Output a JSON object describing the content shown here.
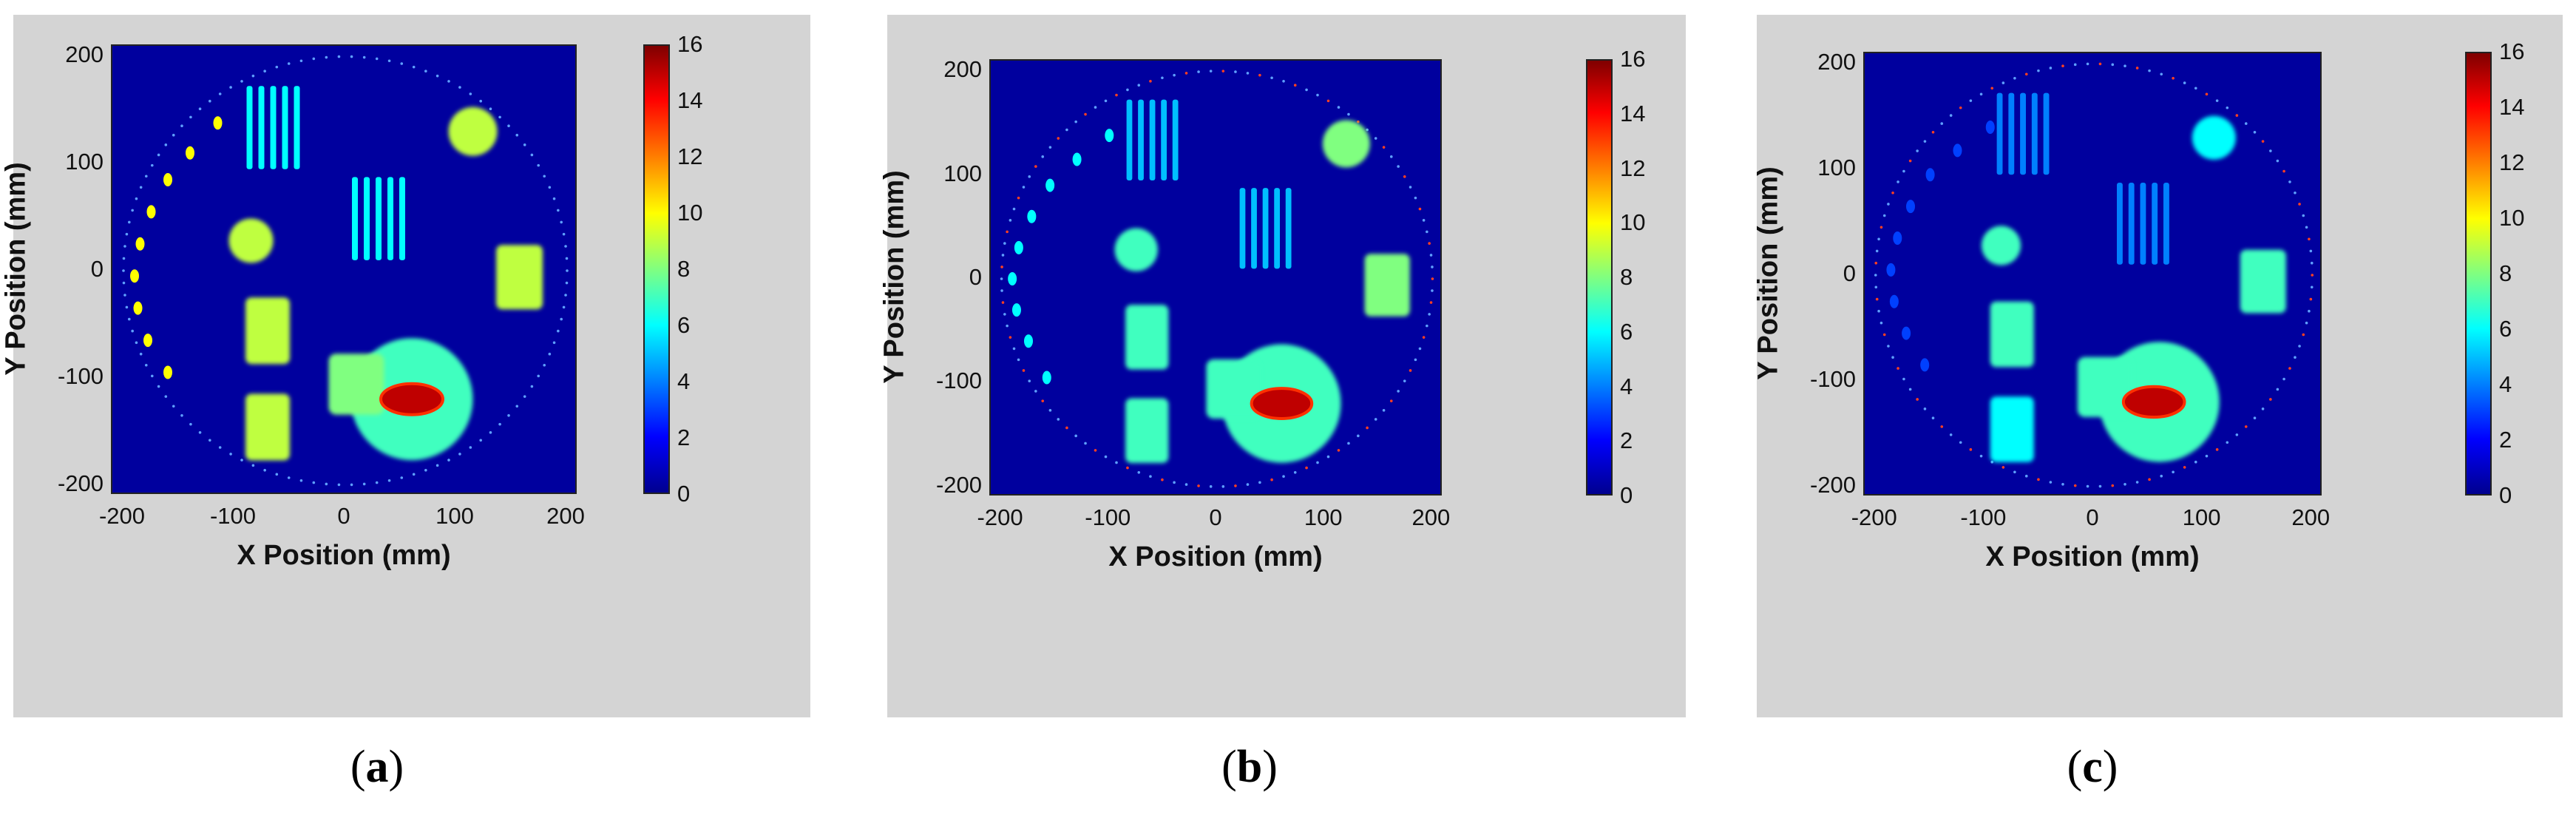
{
  "colors": {
    "background": "#00009e",
    "panel": "#d4d4d4",
    "colormap": "jet"
  },
  "chart_data": [
    {
      "type": "heatmap",
      "panel": "a",
      "caption_letter": "a",
      "xlabel": "X Position (mm)",
      "ylabel": "Y Position (mm)",
      "xlim": [
        -210,
        210
      ],
      "ylim": [
        -210,
        210
      ],
      "x_ticks": [
        "-200",
        "-100",
        "0",
        "100",
        "200"
      ],
      "y_ticks": [
        "200",
        "100",
        "0",
        "-100",
        "-200"
      ],
      "colorbar": {
        "range": [
          0,
          16
        ],
        "ticks": [
          "16",
          "14",
          "12",
          "10",
          "8",
          "6",
          "4",
          "2",
          "0"
        ]
      },
      "phantom_radius": 200,
      "features": {
        "arc_dots": {
          "points": [
            [
              -115,
              138
            ],
            [
              -140,
              110
            ],
            [
              -160,
              85
            ],
            [
              -175,
              55
            ],
            [
              -185,
              25
            ],
            [
              -190,
              -5
            ],
            [
              -187,
              -35
            ],
            [
              -178,
              -65
            ],
            [
              -160,
              -95
            ]
          ],
          "value": 10
        },
        "bar_group_top": {
          "center": [
            -65,
            135
          ],
          "size": [
            48,
            75
          ],
          "value": 6
        },
        "bar_group_mid": {
          "center": [
            30,
            50
          ],
          "size": [
            48,
            75
          ],
          "value": 6
        },
        "disk_top_right": {
          "center": [
            115,
            130
          ],
          "radius": 22,
          "value": 9
        },
        "disk_left": {
          "center": [
            -85,
            28
          ],
          "radius": 20,
          "value": 9
        },
        "rect_right": {
          "center": [
            157,
            -5
          ],
          "size": [
            42,
            58
          ],
          "value": 9
        },
        "rect_left_mid": {
          "center": [
            -70,
            -55
          ],
          "size": [
            40,
            60
          ],
          "value": 9
        },
        "rect_left_bottom": {
          "center": [
            -70,
            -145
          ],
          "size": [
            40,
            60
          ],
          "value": 9
        },
        "blob_low": {
          "center": [
            10,
            -105
          ],
          "size": [
            50,
            55
          ],
          "value": 8
        },
        "blob_large": {
          "center": [
            60,
            -120
          ],
          "radius": 55,
          "value": 7
        },
        "hot_spot": {
          "center": [
            60,
            -120
          ],
          "size": [
            56,
            28
          ],
          "value": 15
        }
      }
    },
    {
      "type": "heatmap",
      "panel": "b",
      "caption_letter": "b",
      "xlabel": "X Position (mm)",
      "ylabel": "Y Position (mm)",
      "xlim": [
        -210,
        210
      ],
      "ylim": [
        -210,
        210
      ],
      "x_ticks": [
        "-200",
        "-100",
        "0",
        "100",
        "200"
      ],
      "y_ticks": [
        "200",
        "100",
        "0",
        "-100",
        "-200"
      ],
      "colorbar": {
        "range": [
          0,
          16
        ],
        "ticks": [
          "16",
          "14",
          "12",
          "10",
          "8",
          "6",
          "4",
          "2",
          "0"
        ]
      },
      "phantom_radius": 200,
      "features": {
        "arc_dots": {
          "points": [
            [
              -100,
              138
            ],
            [
              -130,
              115
            ],
            [
              -155,
              90
            ],
            [
              -172,
              60
            ],
            [
              -184,
              30
            ],
            [
              -190,
              0
            ],
            [
              -186,
              -30
            ],
            [
              -175,
              -60
            ],
            [
              -158,
              -95
            ]
          ],
          "value": 6
        },
        "bar_group_top": {
          "center": [
            -60,
            135
          ],
          "size": [
            48,
            75
          ],
          "value": 5
        },
        "bar_group_mid": {
          "center": [
            45,
            50
          ],
          "size": [
            48,
            75
          ],
          "value": 5
        },
        "disk_top_right": {
          "center": [
            120,
            130
          ],
          "radius": 22,
          "value": 8
        },
        "disk_left": {
          "center": [
            -75,
            28
          ],
          "radius": 20,
          "value": 7
        },
        "rect_right": {
          "center": [
            158,
            -5
          ],
          "size": [
            42,
            58
          ],
          "value": 8
        },
        "rect_left_mid": {
          "center": [
            -65,
            -55
          ],
          "size": [
            40,
            60
          ],
          "value": 7
        },
        "rect_left_bottom": {
          "center": [
            -65,
            -145
          ],
          "size": [
            40,
            60
          ],
          "value": 7
        },
        "blob_low": {
          "center": [
            15,
            -105
          ],
          "size": [
            50,
            55
          ],
          "value": 7
        },
        "blob_large": {
          "center": [
            60,
            -120
          ],
          "radius": 55,
          "value": 7
        },
        "hot_spot": {
          "center": [
            60,
            -120
          ],
          "size": [
            56,
            28
          ],
          "value": 15
        }
      }
    },
    {
      "type": "heatmap",
      "panel": "c",
      "caption_letter": "c",
      "xlabel": "X Position (mm)",
      "ylabel": "Y Position (mm)",
      "xlim": [
        -210,
        210
      ],
      "ylim": [
        -210,
        210
      ],
      "x_ticks": [
        "-200",
        "-100",
        "0",
        "100",
        "200"
      ],
      "y_ticks": [
        "200",
        "100",
        "0",
        "-100",
        "-200"
      ],
      "colorbar": {
        "range": [
          0,
          16
        ],
        "ticks": [
          "16",
          "14",
          "12",
          "10",
          "8",
          "6",
          "4",
          "2",
          "0"
        ]
      },
      "phantom_radius": 200,
      "features": {
        "arc_dots": {
          "points": [
            [
              -95,
              140
            ],
            [
              -125,
              118
            ],
            [
              -150,
              95
            ],
            [
              -168,
              65
            ],
            [
              -180,
              35
            ],
            [
              -186,
              5
            ],
            [
              -183,
              -25
            ],
            [
              -172,
              -55
            ],
            [
              -155,
              -85
            ]
          ],
          "value": 3
        },
        "bar_group_top": {
          "center": [
            -65,
            135
          ],
          "size": [
            48,
            75
          ],
          "value": 4
        },
        "bar_group_mid": {
          "center": [
            45,
            50
          ],
          "size": [
            48,
            75
          ],
          "value": 4
        },
        "disk_top_right": {
          "center": [
            110,
            130
          ],
          "radius": 20,
          "value": 6
        },
        "disk_left": {
          "center": [
            -85,
            28
          ],
          "radius": 18,
          "value": 7
        },
        "rect_right": {
          "center": [
            155,
            -5
          ],
          "size": [
            42,
            58
          ],
          "value": 7
        },
        "rect_left_mid": {
          "center": [
            -75,
            -55
          ],
          "size": [
            40,
            60
          ],
          "value": 7
        },
        "rect_left_bottom": {
          "center": [
            -75,
            -145
          ],
          "size": [
            40,
            60
          ],
          "value": 6
        },
        "blob_low": {
          "center": [
            10,
            -105
          ],
          "size": [
            50,
            55
          ],
          "value": 7
        },
        "blob_large": {
          "center": [
            60,
            -120
          ],
          "radius": 55,
          "value": 7
        },
        "hot_spot": {
          "center": [
            55,
            -120
          ],
          "size": [
            56,
            28
          ],
          "value": 15
        }
      }
    }
  ]
}
